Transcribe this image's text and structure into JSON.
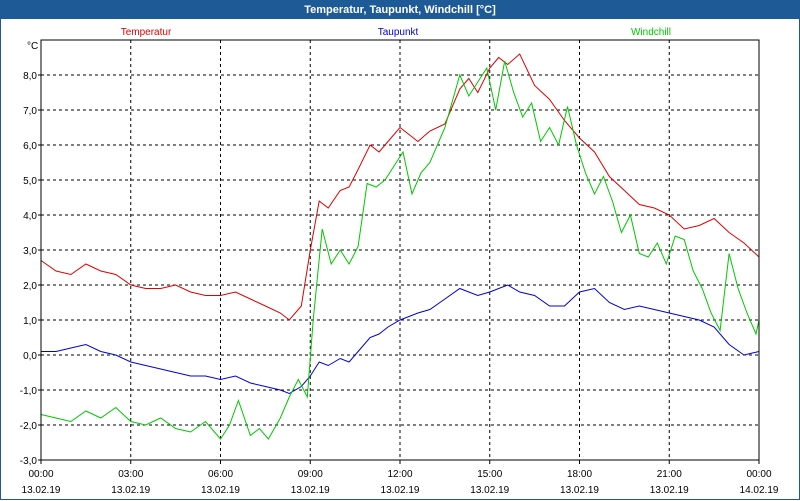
{
  "window": {
    "title": "Temperatur, Taupunkt, Windchill [°C]"
  },
  "chart_data": {
    "type": "line",
    "title": "Temperatur, Taupunkt, Windchill [°C]",
    "ylabel": "°C",
    "xlabel": "",
    "ylim": [
      -3.0,
      9.0
    ],
    "xlim": [
      0,
      24
    ],
    "grid": true,
    "legend_placement": "top",
    "yticks": [
      "-3,0",
      "-2,0",
      "-1,0",
      "0,0",
      "1,0",
      "2,0",
      "3,0",
      "4,0",
      "5,0",
      "6,0",
      "7,0",
      "8,0"
    ],
    "xticks": [
      {
        "time": "00:00",
        "date": "13.02.19"
      },
      {
        "time": "03:00",
        "date": "13.02.19"
      },
      {
        "time": "06:00",
        "date": "13.02.19"
      },
      {
        "time": "09:00",
        "date": "13.02.19"
      },
      {
        "time": "12:00",
        "date": "13.02.19"
      },
      {
        "time": "15:00",
        "date": "13.02.19"
      },
      {
        "time": "18:00",
        "date": "13.02.19"
      },
      {
        "time": "21:00",
        "date": "13.02.19"
      },
      {
        "time": "00:00",
        "date": "14.02.19"
      }
    ],
    "x_unit": "hours since 00:00 13.02.19",
    "series": [
      {
        "name": "Temperatur",
        "color": "#e00000",
        "x": [
          0,
          0.5,
          1,
          1.5,
          2,
          2.5,
          3,
          3.5,
          4,
          4.5,
          5,
          5.5,
          6,
          6.5,
          7,
          7.5,
          8,
          8.3,
          8.7,
          9,
          9.3,
          9.6,
          10,
          10.3,
          10.6,
          11,
          11.3,
          11.6,
          12,
          12.3,
          12.6,
          13,
          13.5,
          14,
          14.3,
          14.6,
          15,
          15.3,
          15.6,
          16,
          16.5,
          17,
          17.5,
          18,
          18.5,
          19,
          19.5,
          20,
          20.5,
          21,
          21.5,
          22,
          22.5,
          23,
          23.5,
          24
        ],
        "y": [
          2.7,
          2.4,
          2.3,
          2.6,
          2.4,
          2.3,
          2.0,
          1.9,
          1.9,
          2.0,
          1.8,
          1.7,
          1.7,
          1.8,
          1.6,
          1.4,
          1.2,
          1.0,
          1.4,
          3.0,
          4.4,
          4.2,
          4.7,
          4.8,
          5.3,
          6.0,
          5.8,
          6.1,
          6.5,
          6.3,
          6.1,
          6.4,
          6.6,
          7.6,
          7.9,
          7.5,
          8.2,
          8.5,
          8.3,
          8.6,
          7.7,
          7.3,
          6.7,
          6.2,
          5.8,
          5.1,
          4.7,
          4.3,
          4.2,
          4.0,
          3.6,
          3.7,
          3.9,
          3.5,
          3.2,
          2.8
        ]
      },
      {
        "name": "Taupunkt",
        "color": "#0000dc",
        "x": [
          0,
          0.5,
          1,
          1.5,
          2,
          2.5,
          3,
          3.5,
          4,
          4.5,
          5,
          5.5,
          6,
          6.5,
          7,
          7.5,
          8,
          8.3,
          8.7,
          9,
          9.3,
          9.6,
          10,
          10.3,
          10.6,
          11,
          11.3,
          11.6,
          12,
          12.3,
          12.6,
          13,
          13.5,
          14,
          14.3,
          14.6,
          15,
          15.3,
          15.6,
          16,
          16.5,
          17,
          17.5,
          18,
          18.5,
          19,
          19.5,
          20,
          20.5,
          21,
          21.5,
          22,
          22.5,
          23,
          23.5,
          24
        ],
        "y": [
          0.1,
          0.1,
          0.2,
          0.3,
          0.1,
          0.0,
          -0.2,
          -0.3,
          -0.4,
          -0.5,
          -0.6,
          -0.6,
          -0.7,
          -0.6,
          -0.8,
          -0.9,
          -1.0,
          -1.1,
          -0.9,
          -0.6,
          -0.2,
          -0.3,
          -0.1,
          -0.2,
          0.1,
          0.5,
          0.6,
          0.8,
          1.0,
          1.1,
          1.2,
          1.3,
          1.6,
          1.9,
          1.8,
          1.7,
          1.8,
          1.9,
          2.0,
          1.8,
          1.7,
          1.4,
          1.4,
          1.8,
          1.9,
          1.5,
          1.3,
          1.4,
          1.3,
          1.2,
          1.1,
          1.0,
          0.8,
          0.3,
          0.0,
          0.1
        ]
      },
      {
        "name": "Windchill",
        "color": "#00c800",
        "x": [
          0,
          0.5,
          1,
          1.5,
          2,
          2.5,
          3,
          3.5,
          4,
          4.5,
          5,
          5.5,
          6,
          6.3,
          6.6,
          7,
          7.3,
          7.6,
          8,
          8.3,
          8.6,
          8.9,
          9.1,
          9.4,
          9.7,
          10,
          10.3,
          10.6,
          10.9,
          11.2,
          11.5,
          11.8,
          12.1,
          12.4,
          12.7,
          13,
          13.5,
          14,
          14.3,
          14.6,
          14.9,
          15.2,
          15.5,
          15.8,
          16.1,
          16.4,
          16.7,
          17,
          17.3,
          17.6,
          17.9,
          18.2,
          18.5,
          18.8,
          19.1,
          19.4,
          19.7,
          20,
          20.3,
          20.6,
          20.9,
          21.2,
          21.5,
          21.8,
          22.1,
          22.4,
          22.7,
          23,
          23.3,
          23.6,
          23.9,
          24
        ],
        "y": [
          -1.7,
          -1.8,
          -1.9,
          -1.6,
          -1.8,
          -1.5,
          -1.9,
          -2.0,
          -1.8,
          -2.1,
          -2.2,
          -1.9,
          -2.4,
          -2.0,
          -1.3,
          -2.3,
          -2.1,
          -2.4,
          -1.8,
          -1.2,
          -0.7,
          -1.2,
          1.0,
          3.6,
          2.6,
          3.0,
          2.6,
          3.1,
          4.9,
          4.8,
          5.0,
          5.4,
          5.8,
          4.6,
          5.2,
          5.5,
          6.5,
          8.0,
          7.4,
          7.8,
          8.2,
          7.0,
          8.4,
          7.5,
          6.8,
          7.2,
          6.1,
          6.5,
          6.0,
          7.1,
          6.0,
          5.2,
          4.6,
          5.1,
          4.4,
          3.5,
          4.0,
          2.9,
          2.8,
          3.2,
          2.6,
          3.4,
          3.3,
          2.4,
          1.9,
          1.2,
          0.7,
          2.9,
          1.9,
          1.2,
          0.6,
          1.0
        ]
      }
    ]
  }
}
